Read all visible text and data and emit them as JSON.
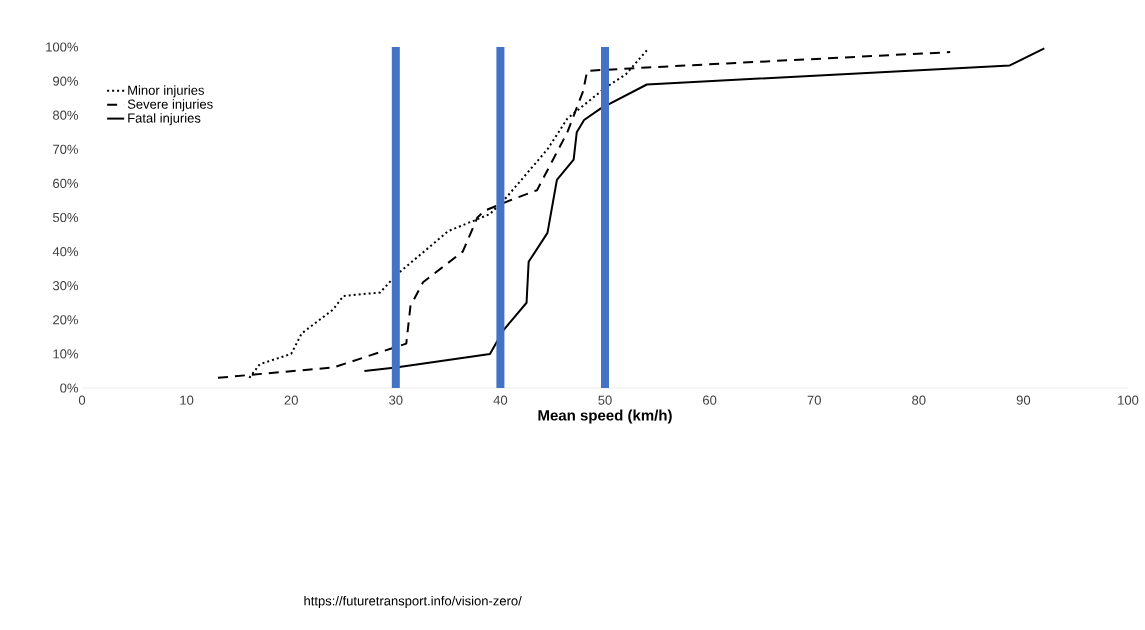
{
  "chart_data": {
    "type": "line",
    "xlabel": "Mean speed (km/h)",
    "xlim": [
      0,
      100
    ],
    "ylim": [
      0,
      100
    ],
    "xticks": [
      0,
      10,
      20,
      30,
      40,
      50,
      60,
      70,
      80,
      90,
      100
    ],
    "yticks": [
      {
        "value": 0,
        "label": "0%"
      },
      {
        "value": 10,
        "label": "10%"
      },
      {
        "value": 20,
        "label": "20%"
      },
      {
        "value": 30,
        "label": "30%"
      },
      {
        "value": 40,
        "label": "40%"
      },
      {
        "value": 50,
        "label": "50%"
      },
      {
        "value": 60,
        "label": "60%"
      },
      {
        "value": 70,
        "label": "70%"
      },
      {
        "value": 80,
        "label": "80%"
      },
      {
        "value": 90,
        "label": "90%"
      },
      {
        "value": 100,
        "label": "100%"
      }
    ],
    "legend": "top left",
    "marker": "none",
    "grid": false,
    "series": [
      {
        "name": "Minor injuries",
        "color": "#000000",
        "line_style": "dotted",
        "x": [
          16,
          17,
          20,
          21,
          24,
          25,
          28.5,
          30,
          35,
          39,
          40.6,
          44.5,
          46.4,
          50,
          52,
          54
        ],
        "values": [
          3,
          7,
          10,
          16,
          23,
          27,
          28,
          33,
          46,
          51,
          56,
          70,
          79,
          88,
          92,
          99
        ]
      },
      {
        "name": "Severe injuries",
        "color": "#000000",
        "line_style": "dashed",
        "x": [
          13,
          24,
          30,
          31,
          31.4,
          32.6,
          36.4,
          37.8,
          38.5,
          40.9,
          43.5,
          46.4,
          47.9,
          48.3,
          54,
          83
        ],
        "values": [
          3,
          6,
          12,
          13,
          24,
          31,
          40,
          50,
          52,
          55,
          58,
          75,
          87,
          93,
          94,
          98.5
        ]
      },
      {
        "name": "Fatal injuries",
        "color": "#000000",
        "line_style": "solid",
        "x": [
          27,
          30,
          39,
          40.3,
          42.5,
          42.7,
          44.5,
          45.4,
          47,
          47.3,
          48,
          49.6,
          54,
          88.7,
          92
        ],
        "values": [
          5,
          6,
          10,
          17,
          25,
          37,
          45.5,
          61,
          67,
          75,
          78.6,
          82,
          89,
          94.6,
          99.6
        ]
      }
    ],
    "ref_lines": [
      {
        "axis": "x",
        "value": 30,
        "color": "#4472c4"
      },
      {
        "axis": "x",
        "value": 40,
        "color": "#4472c4"
      },
      {
        "axis": "x",
        "value": 50,
        "color": "#4472c4"
      }
    ],
    "annotations": [
      "https://futuretransport.info/vision-zero/"
    ]
  }
}
